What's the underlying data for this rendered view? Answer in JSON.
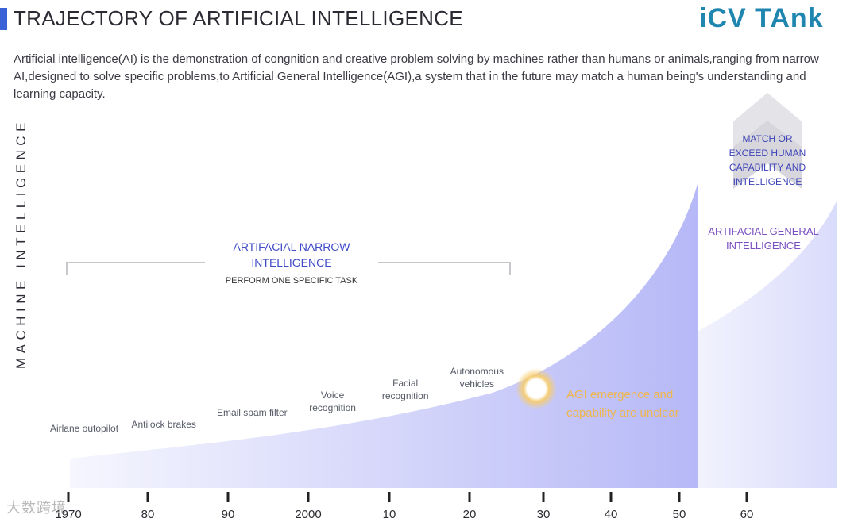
{
  "header": {
    "title": "TRAJECTORY OF ARTIFICIAL INTELLIGENCE",
    "logo": "iCV TAnk",
    "intro": "Artificial intelligence(AI) is the demonstration of congnition and creative problem solving by machines rather than humans or animals,ranging from narrow AI,designed to solve specific problems,to Artificial General Intelligence(AGI),a system that in the future may match a human being's understanding and learning capacity."
  },
  "watermark": "大数跨境",
  "chart_data": {
    "type": "area",
    "ylabel": "MACHINE INTELLIGENCE",
    "xlabel": "",
    "x_ticks": [
      "1970",
      "80",
      "90",
      "2000",
      "10",
      "20",
      "30",
      "40",
      "50",
      "60"
    ],
    "x_years": [
      1970,
      1980,
      1990,
      2000,
      2010,
      2020,
      2030,
      2040,
      2050,
      2060
    ],
    "grid": false,
    "milestones": [
      {
        "label": "Airlane outopilot",
        "year": 1972
      },
      {
        "label": "Antilock brakes",
        "year": 1982
      },
      {
        "label": "Email spam filter",
        "year": 1993
      },
      {
        "label": "Voice recognition",
        "year": 2003
      },
      {
        "label": "Facial recognition",
        "year": 2012
      },
      {
        "label": "Autonomous vehicles",
        "year": 2021
      }
    ],
    "regions": {
      "narrow": {
        "label": "ARTIFACIAL NARROW INTELLIGENCE",
        "sublabel": "PERFORM ONE SPECIFIC TASK",
        "x_range": [
          1970,
          2026
        ]
      },
      "general": {
        "label": "ARTIFACIAL GENERAL INTELLIGENCE"
      }
    },
    "agi_emergence": {
      "label": "AGI emergence and capability are unclear",
      "year": 2029
    },
    "arrow_label": "MATCH OR EXCEED HUMAN CAPABILITY AND INTELLIGENCE",
    "colors": {
      "area": "#7b7ff0",
      "narrow_label": "#3f4bc6",
      "general_label": "#7a4fc1",
      "emergence": "#f0b64a",
      "title_bar": "#3a62d6",
      "logo": "#1f86b0"
    }
  }
}
